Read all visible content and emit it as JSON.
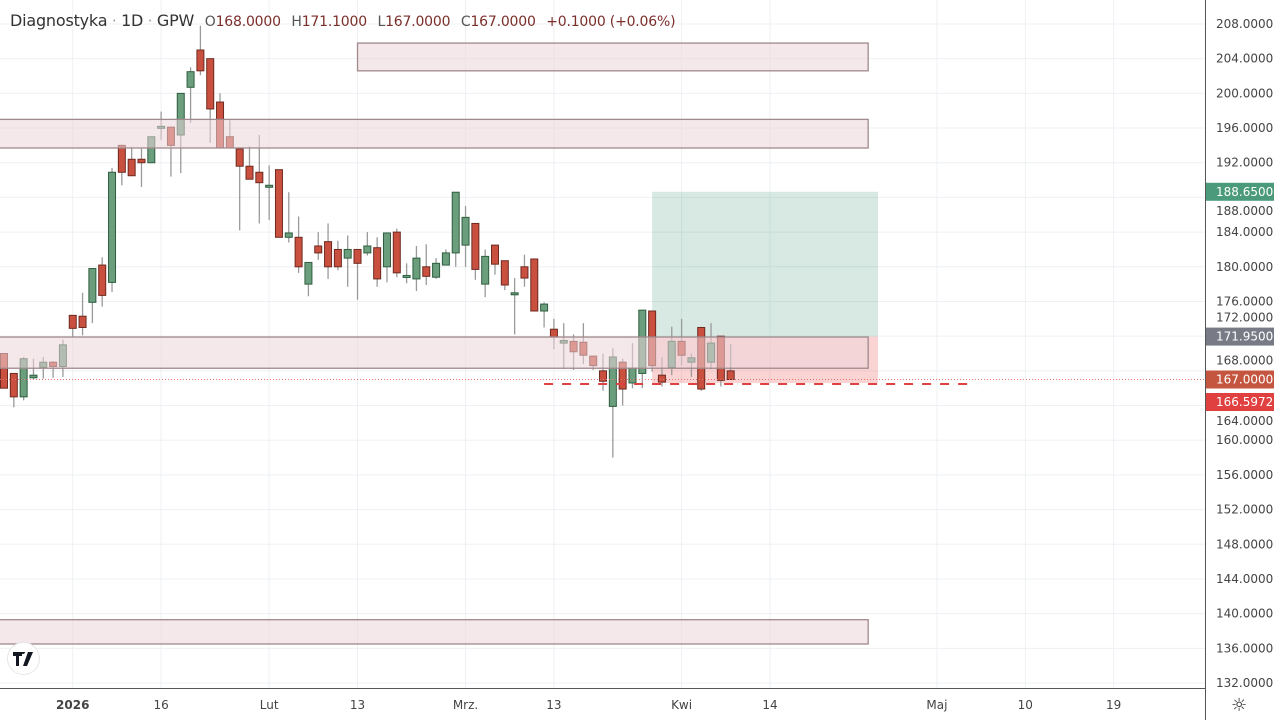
{
  "header": {
    "symbol": "Diagnostyka",
    "interval": "1D",
    "exchange": "GPW",
    "sep": "·",
    "o_label": "O",
    "o_value": "168.0000",
    "h_label": "H",
    "h_value": "171.1000",
    "l_label": "L",
    "l_value": "167.0000",
    "c_label": "C",
    "c_value": "167.0000",
    "change": "+0.1000 (+0.06%)"
  },
  "logo_text": "TV",
  "settings_icon": "gear-icon",
  "colors": {
    "up": "#6b9e7d",
    "down": "#c9503e",
    "target": "#4a9a7b",
    "stop": "#e0403f",
    "entry": "#787b86",
    "last": "#c4553f"
  },
  "chart_data": {
    "type": "candlestick",
    "title": "",
    "ylim": [
      132,
      208
    ],
    "y_ticks": [
      "208.0000",
      "204.0000",
      "200.0000",
      "196.0000",
      "192.0000",
      "188.0000",
      "184.0000",
      "180.0000",
      "176.0000",
      "172.0000",
      "168.0000",
      "164.0000",
      "160.0000",
      "156.0000",
      "152.0000",
      "148.0000",
      "144.0000",
      "140.0000",
      "136.0000",
      "132.0000"
    ],
    "x_ticks": [
      {
        "label": "2026",
        "bar": 7,
        "bold": true
      },
      {
        "label": "16",
        "bar": 16
      },
      {
        "label": "Lut",
        "bar": 27
      },
      {
        "label": "13",
        "bar": 36
      },
      {
        "label": "Mrz.",
        "bar": 47
      },
      {
        "label": "13",
        "bar": 56
      },
      {
        "label": "Kwi",
        "bar": 69
      },
      {
        "label": "14",
        "bar": 78
      },
      {
        "label": "Maj",
        "bar": 95
      },
      {
        "label": "10",
        "bar": 104
      },
      {
        "label": "19",
        "bar": 113
      }
    ],
    "ohlc": [
      [
        170.0,
        170.0,
        166.0,
        166.0
      ],
      [
        167.7,
        167.7,
        163.8,
        165.0
      ],
      [
        165.0,
        169.6,
        164.6,
        169.4
      ],
      [
        167.2,
        169.4,
        167.0,
        167.5
      ],
      [
        168.4,
        169.6,
        167.1,
        169.0
      ],
      [
        169.0,
        169.1,
        167.2,
        168.5
      ],
      [
        168.5,
        171.6,
        167.3,
        171.0
      ],
      [
        174.4,
        174.4,
        171.9,
        172.9
      ],
      [
        174.3,
        177.0,
        172.1,
        173.0
      ],
      [
        175.9,
        179.8,
        173.5,
        179.8
      ],
      [
        180.2,
        181.1,
        175.4,
        176.7
      ],
      [
        178.2,
        191.4,
        177.1,
        190.9
      ],
      [
        194.0,
        194.1,
        189.4,
        190.9
      ],
      [
        192.4,
        193.8,
        190.5,
        190.5
      ],
      [
        192.4,
        193.7,
        189.2,
        192.0
      ],
      [
        192.0,
        195.0,
        192.0,
        195.0
      ],
      [
        196.0,
        197.9,
        194.6,
        196.2
      ],
      [
        196.1,
        196.1,
        190.4,
        194.0
      ],
      [
        195.2,
        200.0,
        190.8,
        200.0
      ],
      [
        200.7,
        203.0,
        196.6,
        202.5
      ],
      [
        205.0,
        207.8,
        202.1,
        202.6
      ],
      [
        204.0,
        204.0,
        194.3,
        198.2
      ],
      [
        199.0,
        200.0,
        193.7,
        193.7
      ],
      [
        195.0,
        196.9,
        193.7,
        193.7
      ],
      [
        193.6,
        193.6,
        184.2,
        191.6
      ],
      [
        191.6,
        193.9,
        190.1,
        190.1
      ],
      [
        190.9,
        195.2,
        185.0,
        189.7
      ],
      [
        189.4,
        191.7,
        185.4,
        189.4
      ],
      [
        191.2,
        191.2,
        183.4,
        183.4
      ],
      [
        183.4,
        188.6,
        182.8,
        183.9
      ],
      [
        183.4,
        185.8,
        179.3,
        180.0
      ],
      [
        178.0,
        180.5,
        176.6,
        180.5
      ],
      [
        182.4,
        184.0,
        180.8,
        181.6
      ],
      [
        182.9,
        185.0,
        178.6,
        180.0
      ],
      [
        182.0,
        183.0,
        179.6,
        180.0
      ],
      [
        181.0,
        183.6,
        177.7,
        182.0
      ],
      [
        182.0,
        182.0,
        176.2,
        180.4
      ],
      [
        181.6,
        184.0,
        181.3,
        182.4
      ],
      [
        182.2,
        183.4,
        177.7,
        178.6
      ],
      [
        180.0,
        183.9,
        178.2,
        183.9
      ],
      [
        184.0,
        184.4,
        178.8,
        179.3
      ],
      [
        178.8,
        180.4,
        178.1,
        179.0
      ],
      [
        178.6,
        182.4,
        177.2,
        181.0
      ],
      [
        180.0,
        182.6,
        177.9,
        178.9
      ],
      [
        178.8,
        181.0,
        178.6,
        180.4
      ],
      [
        180.2,
        182.0,
        180.2,
        181.6
      ],
      [
        181.6,
        188.6,
        180.0,
        188.6
      ],
      [
        182.5,
        187.0,
        180.0,
        185.7
      ],
      [
        185.0,
        185.0,
        178.5,
        179.7
      ],
      [
        178.0,
        182.0,
        176.5,
        181.2
      ],
      [
        182.5,
        182.5,
        179.1,
        180.3
      ],
      [
        180.7,
        180.7,
        177.3,
        177.9
      ],
      [
        177.0,
        178.7,
        172.2,
        177.0
      ],
      [
        180.0,
        181.4,
        177.7,
        178.7
      ],
      [
        180.9,
        180.9,
        174.9,
        174.9
      ],
      [
        174.9,
        175.9,
        173.0,
        175.7
      ],
      [
        172.8,
        174.0,
        170.5,
        171.9
      ],
      [
        171.2,
        173.5,
        168.2,
        171.5
      ],
      [
        171.4,
        172.2,
        168.1,
        170.2
      ],
      [
        171.3,
        173.5,
        168.8,
        169.8
      ],
      [
        169.7,
        169.7,
        168.1,
        168.6
      ],
      [
        168.0,
        170.0,
        165.7,
        166.8
      ],
      [
        163.9,
        170.6,
        158.0,
        169.6
      ],
      [
        169.0,
        169.4,
        164.0,
        165.9
      ],
      [
        166.6,
        171.2,
        166.0,
        168.3
      ],
      [
        167.7,
        175.0,
        166.0,
        175.0
      ],
      [
        174.9,
        174.9,
        167.9,
        168.6
      ],
      [
        167.5,
        169.6,
        166.2,
        166.7
      ],
      [
        168.4,
        173.1,
        167.5,
        171.4
      ],
      [
        171.4,
        174.0,
        168.6,
        169.8
      ],
      [
        169.0,
        170.0,
        167.3,
        169.5
      ],
      [
        173.0,
        173.0,
        165.7,
        165.9
      ],
      [
        169.0,
        173.5,
        168.2,
        171.2
      ],
      [
        172.0,
        172.0,
        166.2,
        166.9
      ],
      [
        168.0,
        171.1,
        167.0,
        167.0
      ]
    ],
    "zones": [
      {
        "top": 205.8,
        "bottom": 202.6,
        "from_bar": 36,
        "to_bar": 88
      },
      {
        "top": 197.0,
        "bottom": 193.7,
        "from_bar": 0,
        "to_bar": 88
      },
      {
        "top": 171.9,
        "bottom": 168.3,
        "from_bar": 0,
        "to_bar": 88
      },
      {
        "top": 139.3,
        "bottom": 136.5,
        "from_bar": 0,
        "to_bar": 88
      }
    ],
    "position": {
      "target": 188.65,
      "entry": 171.95,
      "stop": 166.5972,
      "from_bar": 66,
      "to_bar": 89
    },
    "price_labels": [
      {
        "text": "188.6500",
        "value": 188.65,
        "kind": "target"
      },
      {
        "text": "171.9500",
        "value": 171.95,
        "kind": "entry"
      },
      {
        "text": "167.0000",
        "value": 167.0,
        "kind": "last"
      },
      {
        "text": "166.5972",
        "value": 166.5972,
        "kind": "stop"
      }
    ],
    "last_price": 167.0,
    "stop_line": {
      "value": 166.5972,
      "from_bar": 55,
      "to_bar": 99
    },
    "grid": true
  }
}
